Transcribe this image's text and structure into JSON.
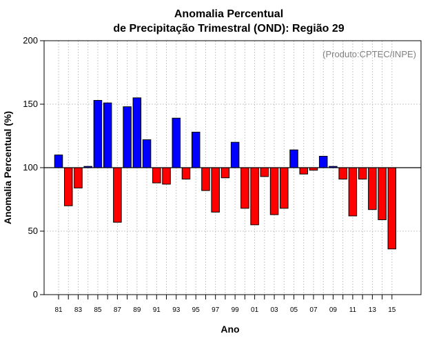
{
  "chart_data": {
    "type": "bar",
    "title_line1": "Anomalia Percentual",
    "title_line2": "de Precipitação Trimestral (OND): Região 29",
    "xlabel": "Ano",
    "ylabel": "Anomalia Percentual (%)",
    "source": "(Produto:CPTEC/INPE)",
    "ylim": [
      0,
      200
    ],
    "yticks": [
      0,
      50,
      100,
      150,
      200
    ],
    "baseline": 100,
    "categories": [
      "81",
      "82",
      "83",
      "84",
      "85",
      "86",
      "87",
      "88",
      "89",
      "90",
      "91",
      "92",
      "93",
      "94",
      "95",
      "96",
      "97",
      "98",
      "99",
      "00",
      "01",
      "02",
      "03",
      "04",
      "05",
      "06",
      "07",
      "08",
      "09",
      "10",
      "11",
      "12",
      "13",
      "14",
      "15"
    ],
    "xtick_labels": [
      "81",
      "83",
      "85",
      "87",
      "89",
      "91",
      "93",
      "95",
      "97",
      "99",
      "01",
      "03",
      "05",
      "07",
      "09",
      "11",
      "13",
      "15"
    ],
    "values": [
      110,
      70,
      84,
      101,
      153,
      151,
      57,
      148,
      155,
      122,
      88,
      87,
      139,
      91,
      128,
      82,
      65,
      92,
      120,
      68,
      55,
      93,
      63,
      68,
      114,
      95,
      98,
      109,
      101,
      91,
      62,
      91,
      67,
      59,
      36
    ],
    "colors": {
      "above": "#0000ff",
      "below": "#ff0000",
      "grid": "#c8c8c8",
      "baseline": "#000000"
    }
  }
}
